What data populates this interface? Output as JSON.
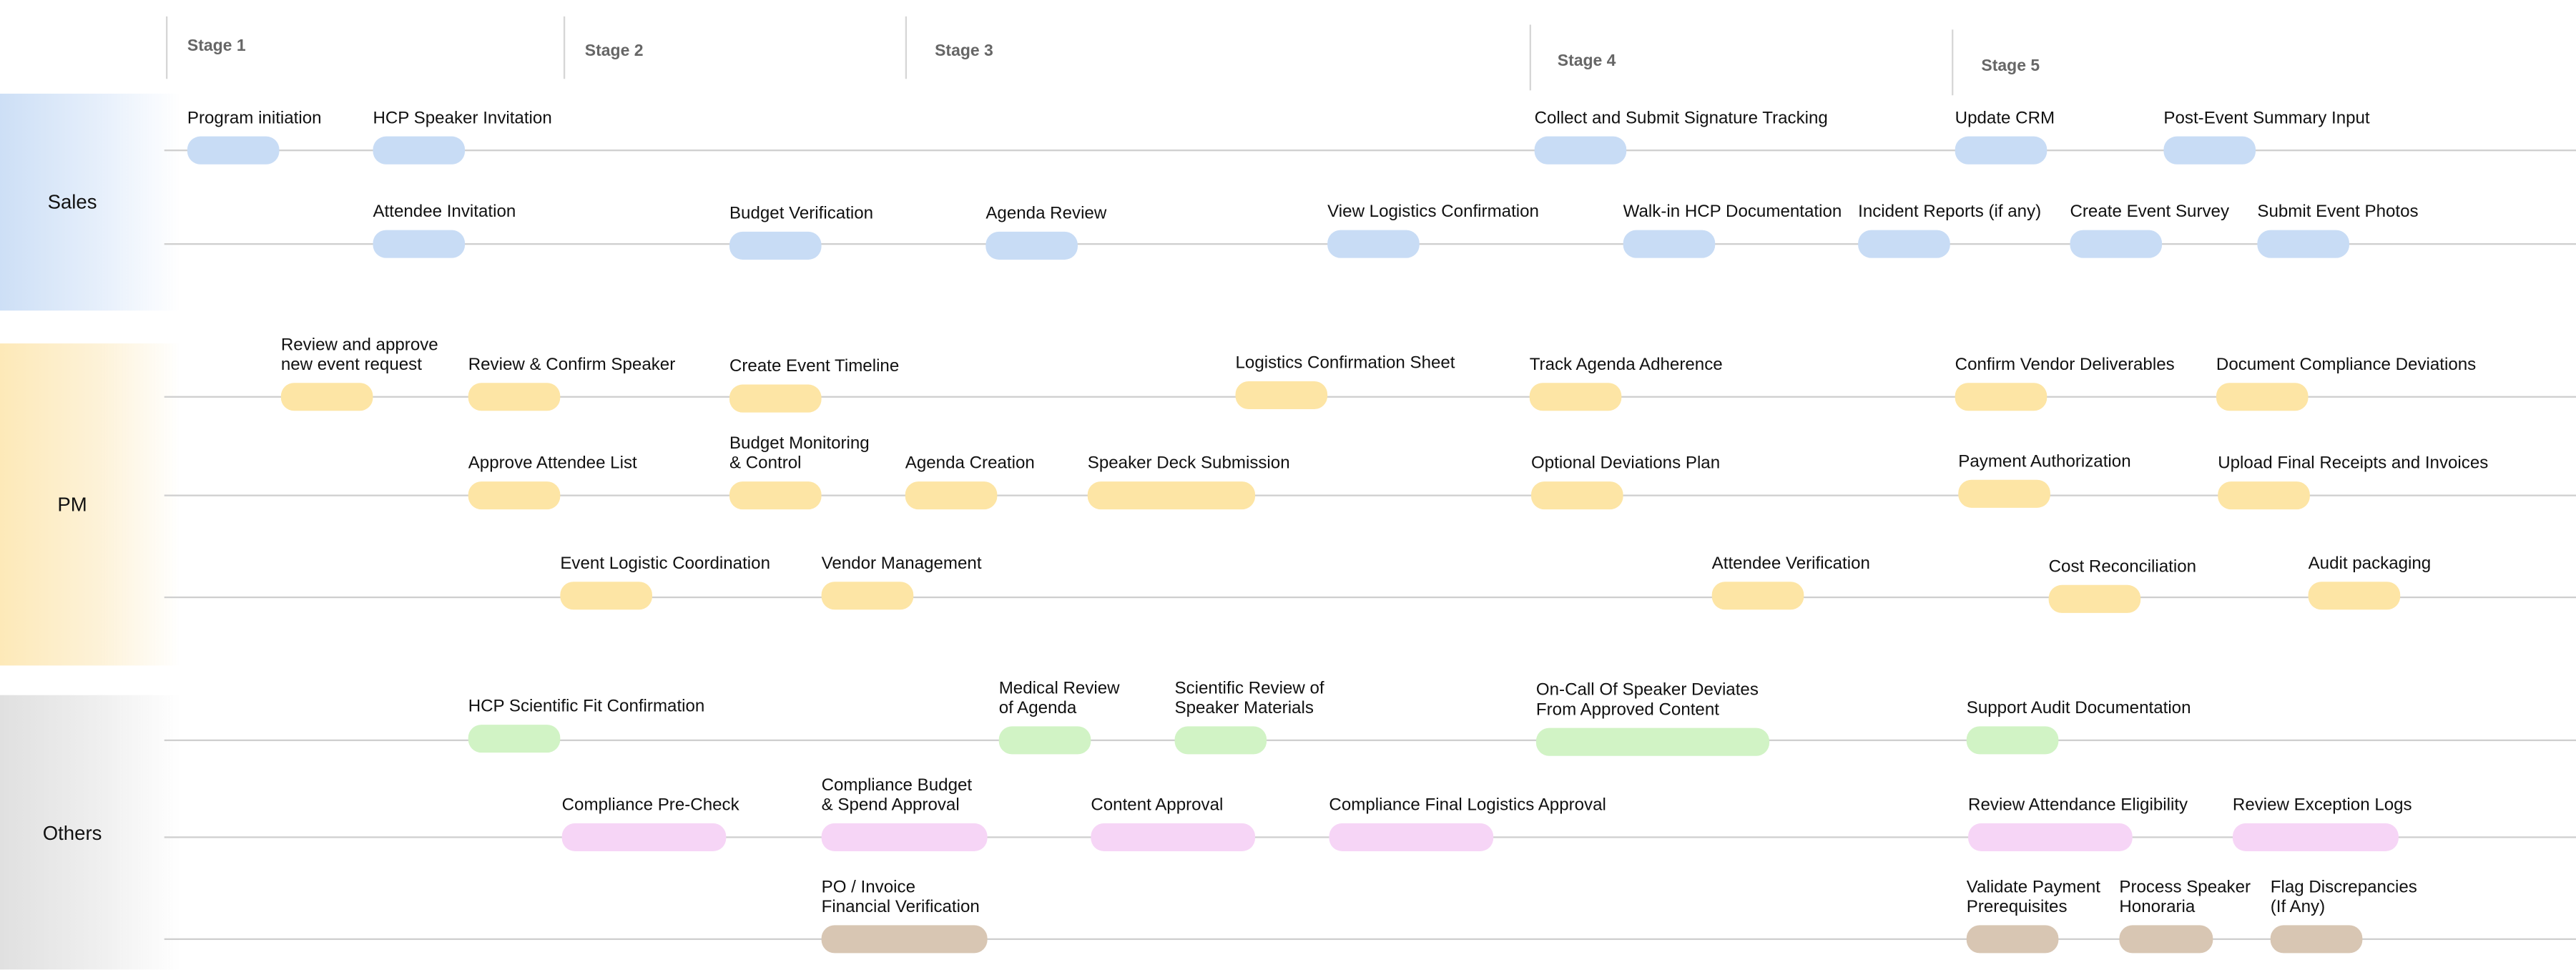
{
  "stages": [
    "Stage 1",
    "Stage 2",
    "Stage 3",
    "Stage 4",
    "Stage 5"
  ],
  "colors": {
    "sales": "#c8dcf5",
    "pm": "#fde5a5",
    "scientific": "#d1f3c5",
    "compliance": "#f6d5f6",
    "finance": "#d8c6b3"
  },
  "lanes": [
    {
      "name": "Sales",
      "rows": [
        {
          "items": [
            {
              "label": "Program initiation"
            },
            {
              "label": "HCP Speaker Invitation"
            },
            {
              "label": "Collect and Submit Signature Tracking"
            },
            {
              "label": "Update CRM"
            },
            {
              "label": "Post-Event Summary Input"
            }
          ]
        },
        {
          "items": [
            {
              "label": "Attendee Invitation"
            },
            {
              "label": "Budget Verification"
            },
            {
              "label": "Agenda Review"
            },
            {
              "label": "View Logistics Confirmation"
            },
            {
              "label": "Walk-in HCP Documentation"
            },
            {
              "label": "Incident Reports (if any)"
            },
            {
              "label": "Create Event Survey"
            },
            {
              "label": "Submit Event Photos"
            }
          ]
        }
      ]
    },
    {
      "name": "PM",
      "rows": [
        {
          "items": [
            {
              "label": "Review and approve\nnew event request"
            },
            {
              "label": "Review & Confirm Speaker"
            },
            {
              "label": "Create Event Timeline"
            },
            {
              "label": "Logistics Confirmation Sheet"
            },
            {
              "label": "Track Agenda Adherence"
            },
            {
              "label": "Confirm Vendor Deliverables"
            },
            {
              "label": "Document Compliance Deviations"
            }
          ]
        },
        {
          "items": [
            {
              "label": "Approve Attendee List"
            },
            {
              "label": "Budget Monitoring\n& Control"
            },
            {
              "label": "Agenda Creation"
            },
            {
              "label": "Speaker Deck Submission"
            },
            {
              "label": "Optional Deviations Plan"
            },
            {
              "label": "Payment Authorization"
            },
            {
              "label": "Upload Final Receipts and Invoices"
            }
          ]
        },
        {
          "items": [
            {
              "label": "Event Logistic Coordination"
            },
            {
              "label": "Vendor Management"
            },
            {
              "label": "Attendee Verification"
            },
            {
              "label": "Cost Reconciliation"
            },
            {
              "label": "Audit packaging"
            }
          ]
        }
      ]
    },
    {
      "name": "Others",
      "rows": [
        {
          "items": [
            {
              "label": "HCP Scientific Fit Confirmation"
            },
            {
              "label": "Medical Review\nof Agenda"
            },
            {
              "label": "Scientific Review of\nSpeaker Materials"
            },
            {
              "label": "On-Call Of Speaker Deviates\nFrom Approved Content"
            },
            {
              "label": "Support Audit Documentation"
            }
          ]
        },
        {
          "items": [
            {
              "label": "Compliance Pre-Check"
            },
            {
              "label": "Compliance Budget\n& Spend Approval"
            },
            {
              "label": "Content Approval"
            },
            {
              "label": "Compliance Final Logistics Approval"
            },
            {
              "label": "Review Attendance Eligibility"
            },
            {
              "label": "Review Exception Logs"
            }
          ]
        },
        {
          "items": [
            {
              "label": "PO / Invoice\nFinancial Verification"
            },
            {
              "label": "Validate Payment\nPrerequisites"
            },
            {
              "label": "Process Speaker\nHonoraria"
            },
            {
              "label": "Flag Discrepancies\n(If Any)"
            }
          ]
        }
      ]
    }
  ]
}
